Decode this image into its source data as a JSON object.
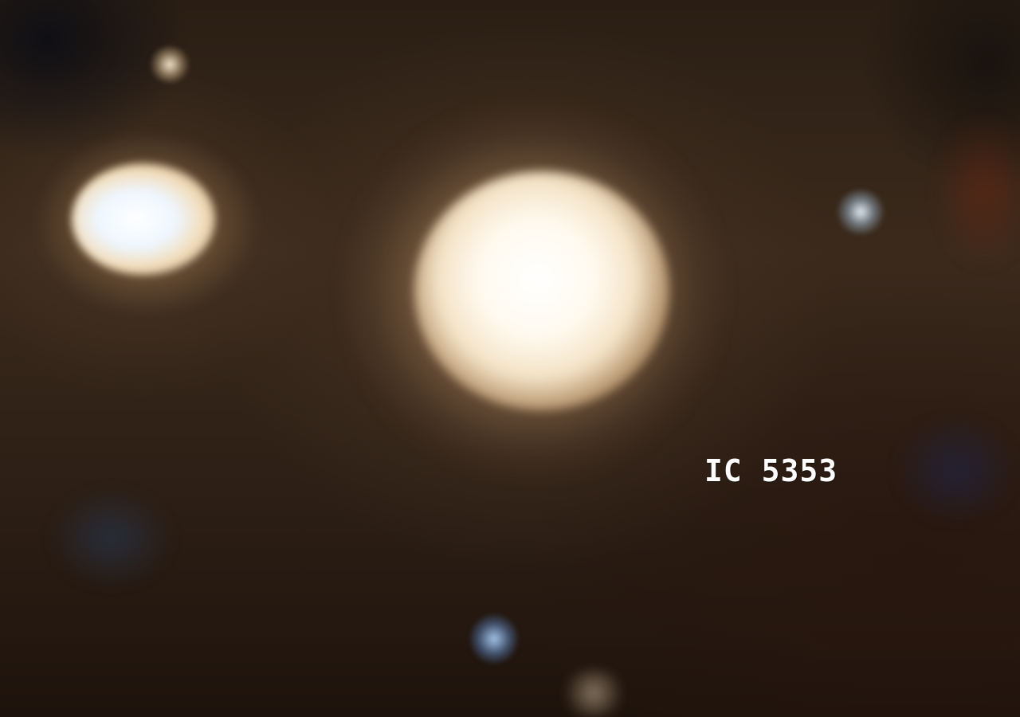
{
  "image": {
    "label": "IC 5353"
  },
  "colors": {
    "sky_base": "#2a1e14",
    "core": "#ffffff",
    "label_text": "#ffffff"
  }
}
